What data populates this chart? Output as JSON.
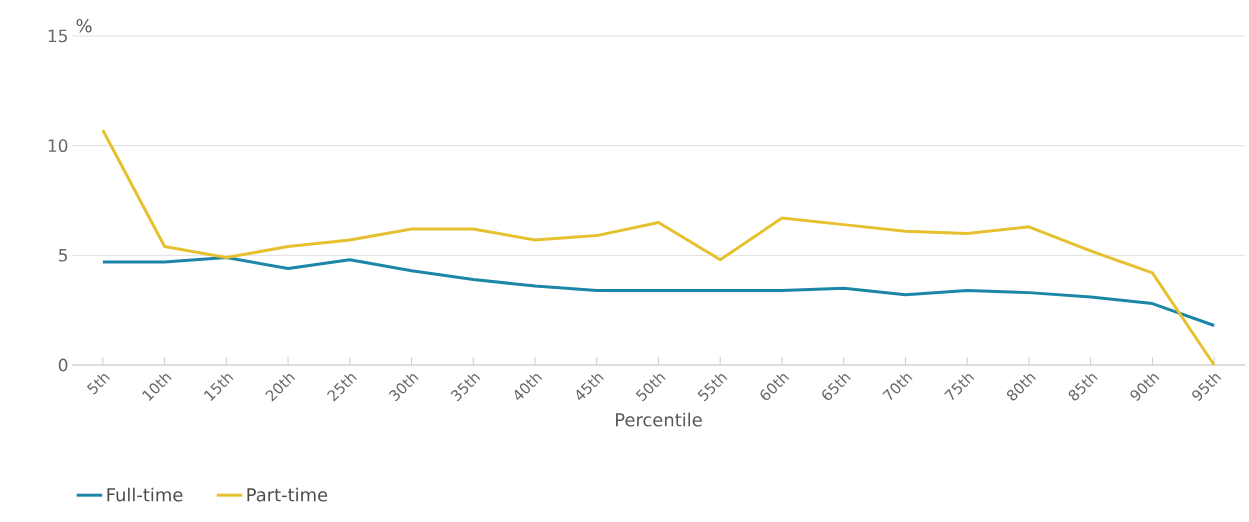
{
  "chart_data": {
    "type": "line",
    "ylabel": "%",
    "xlabel": "Percentile",
    "categories": [
      "5th",
      "10th",
      "15th",
      "20th",
      "25th",
      "30th",
      "35th",
      "40th",
      "45th",
      "50th",
      "55th",
      "60th",
      "65th",
      "70th",
      "75th",
      "80th",
      "85th",
      "90th",
      "95th"
    ],
    "series": [
      {
        "name": "Full-time",
        "color": "#1b86a8",
        "values": [
          4.7,
          4.7,
          4.9,
          4.4,
          4.8,
          4.3,
          3.9,
          3.6,
          3.4,
          3.4,
          3.4,
          3.4,
          3.5,
          3.2,
          3.4,
          3.3,
          3.1,
          2.8,
          1.8
        ]
      },
      {
        "name": "Part-time",
        "color": "#e5c12f",
        "values": [
          10.7,
          5.4,
          4.9,
          5.4,
          5.7,
          6.2,
          6.2,
          5.7,
          5.9,
          6.5,
          4.8,
          6.7,
          6.4,
          6.1,
          6.0,
          6.3,
          5.2,
          4.2,
          0
        ]
      }
    ],
    "ylim": [
      0,
      15
    ],
    "yticks": [
      0,
      5,
      10,
      15
    ],
    "grid": "y",
    "legend": "bottom left",
    "marker": "none",
    "line_style": "solid"
  }
}
